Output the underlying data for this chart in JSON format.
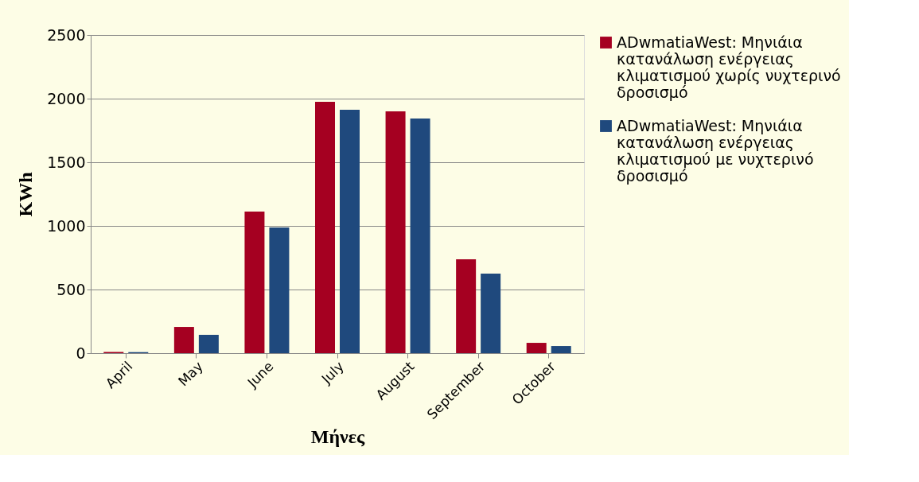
{
  "chart_data": {
    "type": "bar",
    "xlabel": "Μήνες",
    "ylabel": "KWh",
    "categories": [
      "April",
      "May",
      "June",
      "July",
      "August",
      "September",
      "October"
    ],
    "series": [
      {
        "name": "ADwmatiaWest: Μηνιάια κατανάλωση ενέργειας κλιματισμού χωρίς νυχτερινό δροσισμό",
        "color": "#a50021",
        "values": [
          10,
          206,
          1112,
          1975,
          1900,
          737,
          81
        ]
      },
      {
        "name": "ADwmatiaWest: Μηνιάια κατανάλωση ενέργειας κλιματισμού με νυχτερινό δροσισμό",
        "color": "#1f497d",
        "values": [
          8,
          144,
          987,
          1912,
          1844,
          625,
          56
        ]
      }
    ],
    "ylim": [
      0,
      2500
    ],
    "yticks": [
      0,
      500,
      1000,
      1500,
      2000,
      2500
    ],
    "grid": "y",
    "legend": "right"
  }
}
